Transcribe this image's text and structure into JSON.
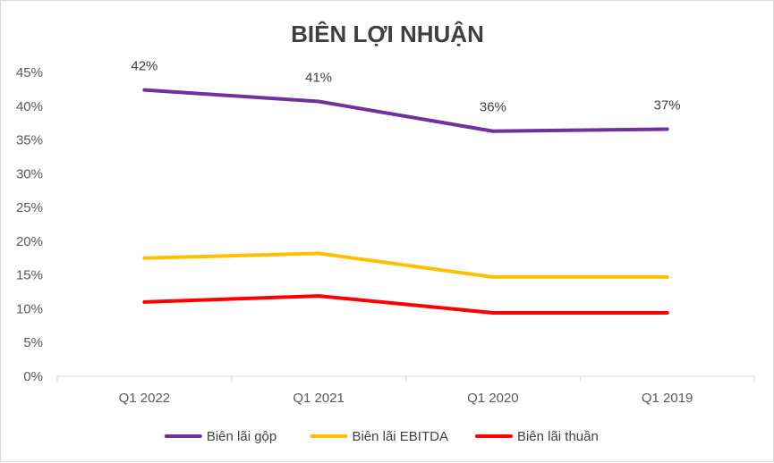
{
  "chart_data": {
    "type": "line",
    "title": "BIÊN LỢI NHUẬN",
    "categories": [
      "Q1 2022",
      "Q1 2021",
      "Q1 2020",
      "Q1 2019"
    ],
    "ylim": [
      0,
      45
    ],
    "yticks": [
      0,
      5,
      10,
      15,
      20,
      25,
      30,
      35,
      40,
      45
    ],
    "ytick_labels": [
      "0%",
      "5%",
      "10%",
      "15%",
      "20%",
      "25%",
      "30%",
      "35%",
      "40%",
      "45%"
    ],
    "xlabel": "",
    "ylabel": "",
    "grid": false,
    "legend_position": "bottom",
    "series": [
      {
        "name": "Biên lãi gộp",
        "color": "#7030A0",
        "values": [
          42.4,
          40.7,
          36.3,
          36.6
        ],
        "data_labels": [
          "42%",
          "41%",
          "36%",
          "37%"
        ]
      },
      {
        "name": "Biên lãi EBITDA",
        "color": "#FFC000",
        "values": [
          17.5,
          18.2,
          14.7,
          14.7
        ],
        "data_labels": []
      },
      {
        "name": "Biên lãi thuần",
        "color": "#FF0000",
        "values": [
          11.0,
          11.9,
          9.4,
          9.4
        ],
        "data_labels": []
      }
    ]
  }
}
